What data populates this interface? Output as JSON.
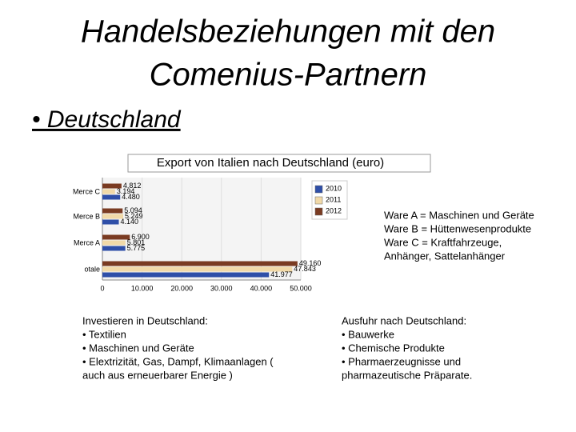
{
  "slide": {
    "title": [
      "Handelsbeziehungen mit den",
      "Comenius-Partnern"
    ],
    "bullet": "• Deutschland",
    "legend_note": [
      "Ware A = Maschinen und Geräte",
      "Ware  B = Hüttenwesenprodukte",
      "Ware  C = Kraftfahrzeuge,",
      "Anhänger, Sattelanhänger"
    ],
    "left_text": [
      "Investieren in Deutschland:",
      "• Textilien",
      "• Maschinen und Geräte",
      "• Elextrizität, Gas, Dampf, Klimaanlagen (",
      "auch aus erneuerbarer Energie )"
    ],
    "right_text": [
      "Ausfuhr nach Deutschland:",
      "• Bauwerke",
      "• Chemische Produkte",
      "• Pharmaerzeugnisse und",
      "pharmazeutische Präparate."
    ]
  },
  "chart_data": {
    "type": "hbar",
    "title": "Export von Italien  nach Deutschland (euro)",
    "categories": [
      "Merce C",
      "Merce B",
      "Merce A",
      "otale"
    ],
    "series": [
      {
        "name": "2010",
        "color": "#2f4fa8",
        "values": [
          4480,
          4140,
          5775,
          41977
        ],
        "value_labels": [
          "4.480",
          "4.140",
          "5.775",
          "41.977"
        ]
      },
      {
        "name": "2011",
        "color": "#f1d9a8",
        "values": [
          3194,
          5249,
          5801,
          47843
        ],
        "value_labels": [
          "3.194",
          "5.249",
          "5.801",
          "47.843"
        ]
      },
      {
        "name": "2012",
        "color": "#7a3b22",
        "values": [
          4812,
          5094,
          6900,
          49160
        ],
        "value_labels": [
          "4.812",
          "5.094",
          "6.900",
          "49.160"
        ]
      }
    ],
    "xlim": [
      0,
      50000
    ],
    "xticks": [
      0,
      {
        "value": 10000,
        "label": "10.000"
      },
      {
        "value": 20000,
        "label": "20.000"
      },
      {
        "value": 30000,
        "label": "30.000"
      },
      {
        "value": 40000,
        "label": "40.000"
      },
      {
        "value": 50000,
        "label": "50.000"
      }
    ],
    "grid": true
  }
}
